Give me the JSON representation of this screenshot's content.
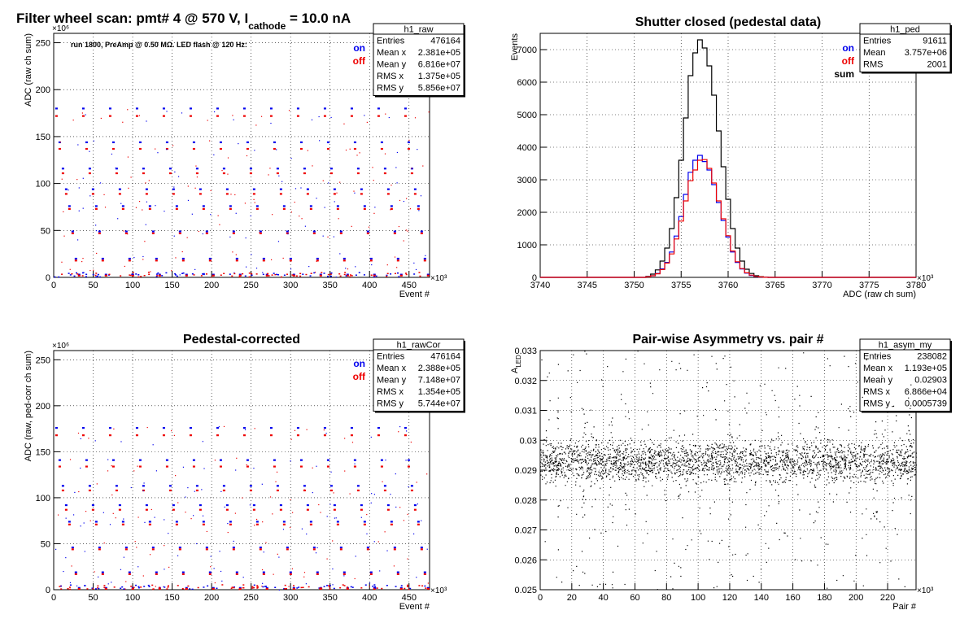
{
  "page": {
    "title": "Filter wheel scan: pmt#   4 @   570 V, I",
    "title_sub": "cathode",
    "title_tail": " = 10.0 nA",
    "run_info": "run 1800, PreAmp @ 0.50 MΩ. LED flash @  120 Hz:"
  },
  "colors": {
    "on": "#0000ee",
    "off": "#ee0000",
    "sum": "#000000"
  },
  "chart_data": [
    {
      "id": "raw",
      "type": "scatter",
      "title": "",
      "xlabel": "Event #",
      "ylabel": "ADC (raw ch sum)",
      "x_exponent": "×10³",
      "y_exponent": "×10⁶",
      "xlim": [
        0,
        476
      ],
      "ylim": [
        0,
        260
      ],
      "xticks": [
        0,
        50,
        100,
        150,
        200,
        250,
        300,
        350,
        400,
        450
      ],
      "yticks": [
        0,
        50,
        100,
        150,
        200,
        250
      ],
      "grid": true,
      "legend": {
        "position": "top-right",
        "entries": [
          {
            "name": "on",
            "color": "#0000ee"
          },
          {
            "name": "off",
            "color": "#ee0000"
          }
        ]
      },
      "series": [
        {
          "name": "on",
          "levels": [
            180,
            144,
            116,
            94,
            76,
            49,
            20,
            3
          ]
        },
        {
          "name": "off",
          "levels": [
            172,
            137,
            111,
            89,
            73,
            47,
            18,
            2
          ]
        }
      ],
      "stats": {
        "name": "h1_raw",
        "rows": [
          {
            "label": "Entries",
            "value": "476164"
          },
          {
            "label": "Mean x",
            "value": "2.381e+05"
          },
          {
            "label": "Mean y",
            "value": "6.816e+07"
          },
          {
            "label": "RMS x",
            "value": "1.375e+05"
          },
          {
            "label": "RMS y",
            "value": "5.856e+07"
          }
        ]
      }
    },
    {
      "id": "ped",
      "type": "line",
      "title": "Shutter closed (pedestal data)",
      "xlabel": "ADC (raw ch sum)",
      "ylabel": "Events",
      "x_exponent": "×10³",
      "xlim": [
        3740,
        3780
      ],
      "ylim": [
        0,
        7500
      ],
      "xticks": [
        3740,
        3745,
        3750,
        3755,
        3760,
        3765,
        3770,
        3775,
        3780
      ],
      "yticks": [
        0,
        1000,
        2000,
        3000,
        4000,
        5000,
        6000,
        7000
      ],
      "grid": true,
      "legend": {
        "position": "top-right",
        "entries": [
          {
            "name": "on",
            "color": "#0000ee"
          },
          {
            "name": "off",
            "color": "#ee0000"
          },
          {
            "name": "sum",
            "color": "#000000"
          }
        ]
      },
      "x": [
        3751.5,
        3752,
        3752.5,
        3753,
        3753.5,
        3754,
        3754.5,
        3755,
        3755.5,
        3756,
        3756.5,
        3757,
        3757.5,
        3758,
        3758.5,
        3759,
        3759.5,
        3760,
        3760.5,
        3761,
        3761.5,
        3762,
        3762.5,
        3763,
        3763.5,
        3764
      ],
      "series": [
        {
          "name": "sum",
          "values": [
            30,
            100,
            230,
            500,
            900,
            1500,
            2450,
            3600,
            4900,
            6200,
            6900,
            7300,
            7050,
            6500,
            5600,
            4500,
            3400,
            2400,
            1500,
            900,
            500,
            250,
            120,
            50,
            20,
            5
          ]
        },
        {
          "name": "on",
          "values": [
            15,
            50,
            120,
            260,
            460,
            780,
            1270,
            1870,
            2550,
            3230,
            3600,
            3750,
            3560,
            3300,
            2850,
            2300,
            1750,
            1240,
            780,
            460,
            260,
            130,
            60,
            25,
            10,
            3
          ]
        },
        {
          "name": "off",
          "values": [
            15,
            50,
            110,
            240,
            440,
            720,
            1180,
            1730,
            2350,
            2970,
            3300,
            3600,
            3620,
            3350,
            2900,
            2350,
            1800,
            1280,
            810,
            480,
            270,
            140,
            70,
            30,
            12,
            3
          ]
        }
      ],
      "stats": {
        "name": "h1_ped",
        "rows": [
          {
            "label": "Entries",
            "value": "91611"
          },
          {
            "label": "Mean",
            "value": "3.757e+06"
          },
          {
            "label": "RMS",
            "value": "2001"
          }
        ]
      }
    },
    {
      "id": "rawcor",
      "type": "scatter",
      "title": "Pedestal-corrected",
      "xlabel": "Event #",
      "ylabel": "ADC (raw, ped-corr ch sum)",
      "x_exponent": "×10³",
      "y_exponent": "×10⁶",
      "xlim": [
        0,
        476
      ],
      "ylim": [
        0,
        260
      ],
      "xticks": [
        0,
        50,
        100,
        150,
        200,
        250,
        300,
        350,
        400,
        450
      ],
      "yticks": [
        0,
        50,
        100,
        150,
        200,
        250
      ],
      "grid": true,
      "legend": {
        "position": "top-right",
        "entries": [
          {
            "name": "on",
            "color": "#0000ee"
          },
          {
            "name": "off",
            "color": "#ee0000"
          }
        ]
      },
      "series": [
        {
          "name": "on",
          "levels": [
            176,
            141,
            113,
            92,
            74,
            46,
            19,
            2
          ]
        },
        {
          "name": "off",
          "levels": [
            168,
            134,
            108,
            87,
            71,
            44,
            17,
            1
          ]
        }
      ],
      "stats": {
        "name": "h1_rawCor",
        "rows": [
          {
            "label": "Entries",
            "value": "476164"
          },
          {
            "label": "Mean x",
            "value": "2.388e+05"
          },
          {
            "label": "Mean y",
            "value": "7.148e+07"
          },
          {
            "label": "RMS x",
            "value": "1.354e+05"
          },
          {
            "label": "RMS y",
            "value": "5.744e+07"
          }
        ]
      }
    },
    {
      "id": "asym",
      "type": "scatter",
      "title": "Pair-wise Asymmetry vs. pair #",
      "xlabel": "Pair #",
      "ylabel": "A",
      "ylabel_sub": "LED",
      "x_exponent": "×10³",
      "xlim": [
        0,
        238
      ],
      "ylim": [
        0.025,
        0.033
      ],
      "xticks": [
        0,
        20,
        40,
        60,
        80,
        100,
        120,
        140,
        160,
        180,
        200,
        220
      ],
      "yticks": [
        0.025,
        0.026,
        0.027,
        0.028,
        0.029,
        0.03,
        0.031,
        0.032,
        0.033
      ],
      "ytick_labels": [
        "0.025",
        "0.026",
        "0.027",
        "0.028",
        "0.029",
        "0.03",
        "0.031",
        "0.032",
        "0.033"
      ],
      "grid": true,
      "band_center": 0.0293,
      "spikes_x": [
        12,
        27,
        33,
        45,
        55,
        67,
        88,
        100,
        120,
        130,
        150,
        163,
        175,
        195,
        212,
        224,
        234
      ],
      "stats": {
        "name": "h1_asym_my",
        "rows": [
          {
            "label": "Entries",
            "value": "238082"
          },
          {
            "label": "Mean x",
            "value": "1.193e+05"
          },
          {
            "label": "Mean y",
            "value": "0.02903"
          },
          {
            "label": "RMS x",
            "value": "6.866e+04"
          },
          {
            "label": "RMS y",
            "value": "0.0005739"
          }
        ]
      }
    }
  ]
}
